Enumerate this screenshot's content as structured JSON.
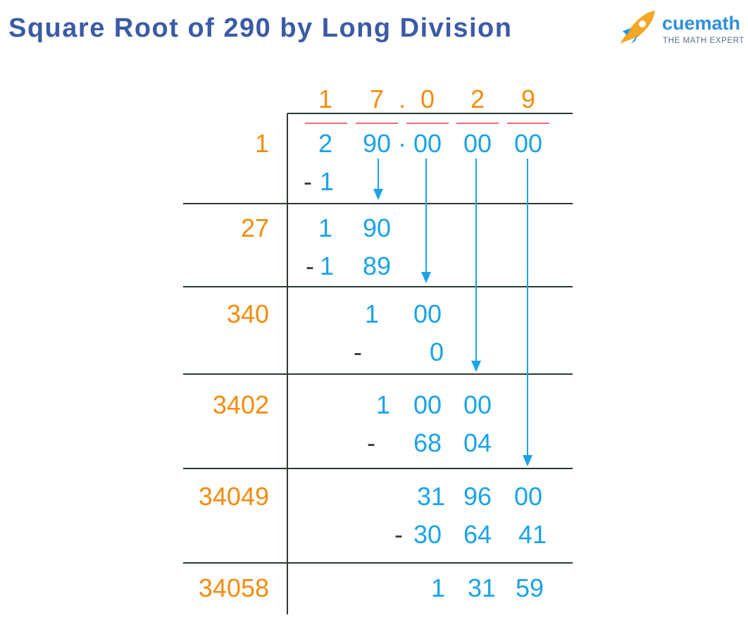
{
  "title": "Square Root of 290 by Long Division",
  "logo": {
    "name": "cuemath",
    "tagline": "THE MATH EXPERT"
  },
  "quotient": [
    "1",
    "7",
    ".",
    "0",
    "2",
    "9"
  ],
  "steps": [
    {
      "divisor": "1",
      "lines": [
        [
          "2",
          "90",
          "·",
          "00",
          "00",
          "00"
        ],
        [
          "-",
          "1"
        ]
      ]
    },
    {
      "divisor": "27",
      "lines": [
        [
          "1",
          "90"
        ],
        [
          "-",
          "1",
          "89"
        ]
      ]
    },
    {
      "divisor": "340",
      "lines": [
        [
          "1",
          "00"
        ],
        [
          "-",
          "0"
        ]
      ]
    },
    {
      "divisor": "3402",
      "lines": [
        [
          "1",
          "00",
          "00"
        ],
        [
          "-",
          "68",
          "04"
        ]
      ]
    },
    {
      "divisor": "34049",
      "lines": [
        [
          "31",
          "96",
          "00"
        ],
        [
          "-",
          "30",
          "64",
          "41"
        ]
      ]
    },
    {
      "divisor": "34058",
      "lines": [
        [
          "1",
          "31",
          "59"
        ]
      ]
    }
  ]
}
